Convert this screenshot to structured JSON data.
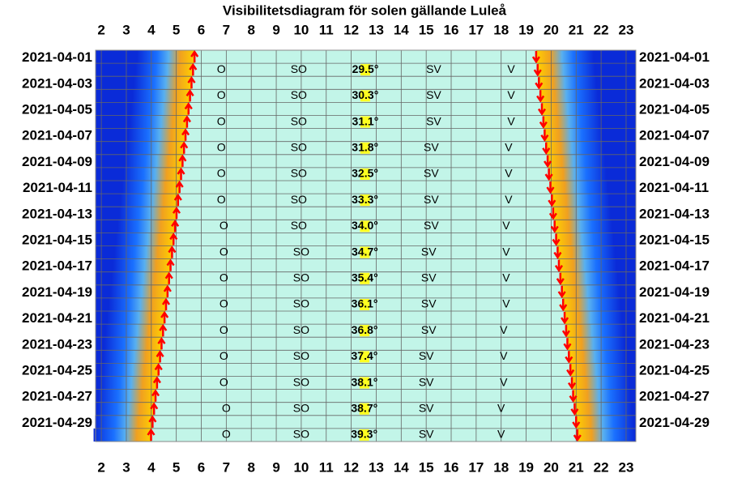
{
  "chart_data": {
    "type": "sun-visibility",
    "title": "Visibilitetsdiagram för solen gällande Luleå",
    "xlim": [
      1.77,
      23.39
    ],
    "xticks": [
      2,
      3,
      4,
      5,
      6,
      7,
      8,
      9,
      10,
      11,
      12,
      13,
      14,
      15,
      16,
      17,
      18,
      19,
      20,
      21,
      22,
      23
    ],
    "dates": [
      "2021-04-01",
      "2021-04-03",
      "2021-04-05",
      "2021-04-07",
      "2021-04-09",
      "2021-04-11",
      "2021-04-13",
      "2021-04-15",
      "2021-04-17",
      "2021-04-19",
      "2021-04-21",
      "2021-04-23",
      "2021-04-25",
      "2021-04-27",
      "2021-04-29"
    ],
    "sunrise": [
      5.73,
      5.67,
      5.61,
      5.55,
      5.49,
      5.43,
      5.37,
      5.31,
      5.25,
      5.19,
      5.13,
      5.07,
      5.01,
      4.95,
      4.89,
      4.83,
      4.77,
      4.71,
      4.65,
      4.59,
      4.53,
      4.47,
      4.41,
      4.35,
      4.29,
      4.23,
      4.17,
      4.11,
      4.05,
      3.99
    ],
    "sunset": [
      19.4,
      19.46,
      19.51,
      19.57,
      19.63,
      19.69,
      19.74,
      19.8,
      19.86,
      19.91,
      19.97,
      20.03,
      20.08,
      20.14,
      20.2,
      20.26,
      20.31,
      20.37,
      20.43,
      20.48,
      20.54,
      20.6,
      20.65,
      20.71,
      20.77,
      20.83,
      20.88,
      20.94,
      21.0,
      21.05
    ],
    "elevation": {
      "values": [
        29.5,
        30.3,
        31.1,
        31.8,
        32.5,
        33.3,
        34.0,
        34.7,
        35.4,
        36.1,
        36.8,
        37.4,
        38.1,
        38.7,
        39.3
      ],
      "value_labels": [
        "29.5°",
        "30.3°",
        "31.1°",
        "31.8°",
        "32.5°",
        "33.3°",
        "34.0°",
        "34.7°",
        "35.4°",
        "36.1°",
        "36.8°",
        "37.4°",
        "38.1°",
        "38.7°",
        "39.3°"
      ]
    },
    "directions": [
      {
        "name": "O",
        "times": [
          6.8,
          6.8,
          6.8,
          6.8,
          6.8,
          6.8,
          6.9,
          6.9,
          6.9,
          6.9,
          6.9,
          6.9,
          6.9,
          7.0,
          7.0
        ]
      },
      {
        "name": "SO",
        "times": [
          9.9,
          9.9,
          9.9,
          9.9,
          9.9,
          9.9,
          9.9,
          10.0,
          10.0,
          10.0,
          10.0,
          10.0,
          10.0,
          10.0,
          10.0
        ]
      },
      {
        "name": "SV",
        "times": [
          15.3,
          15.3,
          15.3,
          15.2,
          15.2,
          15.2,
          15.2,
          15.1,
          15.1,
          15.1,
          15.1,
          15.0,
          15.0,
          15.0,
          15.0
        ]
      },
      {
        "name": "V",
        "times": [
          18.4,
          18.4,
          18.4,
          18.3,
          18.3,
          18.3,
          18.2,
          18.2,
          18.2,
          18.2,
          18.1,
          18.1,
          18.1,
          18.0,
          18.0
        ]
      }
    ],
    "grid": true
  }
}
